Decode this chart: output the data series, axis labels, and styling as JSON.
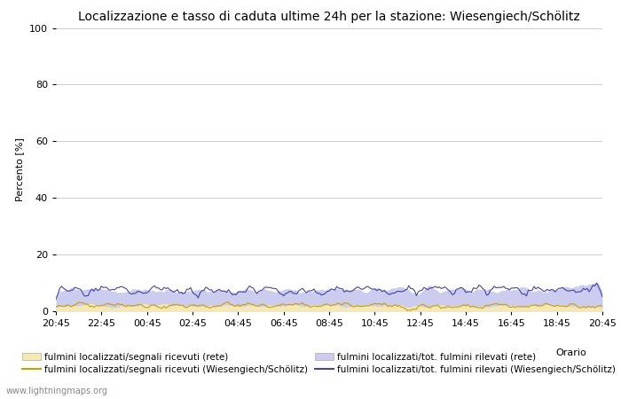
{
  "title": "Localizzazione e tasso di caduta ultime 24h per la stazione: Wiesengiech/Schölitz",
  "ylabel": "Percento [%]",
  "xlabel": "Orario",
  "ylim": [
    0,
    100
  ],
  "yticks": [
    0,
    20,
    40,
    60,
    80,
    100
  ],
  "xtick_labels": [
    "20:45",
    "22:45",
    "00:45",
    "02:45",
    "04:45",
    "06:45",
    "08:45",
    "10:45",
    "12:45",
    "14:45",
    "16:45",
    "18:45",
    "20:45"
  ],
  "n_points": 289,
  "fill_color_rete_yellow": "#f5e8b0",
  "fill_color_rete_blue": "#ccccee",
  "line_color_station_yellow": "#c8a000",
  "line_color_station_blue": "#4444aa",
  "watermark": "www.lightningmaps.org",
  "background_color": "#ffffff",
  "grid_color": "#cccccc",
  "title_fontsize": 10,
  "axis_fontsize": 8,
  "tick_fontsize": 8,
  "legend_fontsize": 7.5
}
